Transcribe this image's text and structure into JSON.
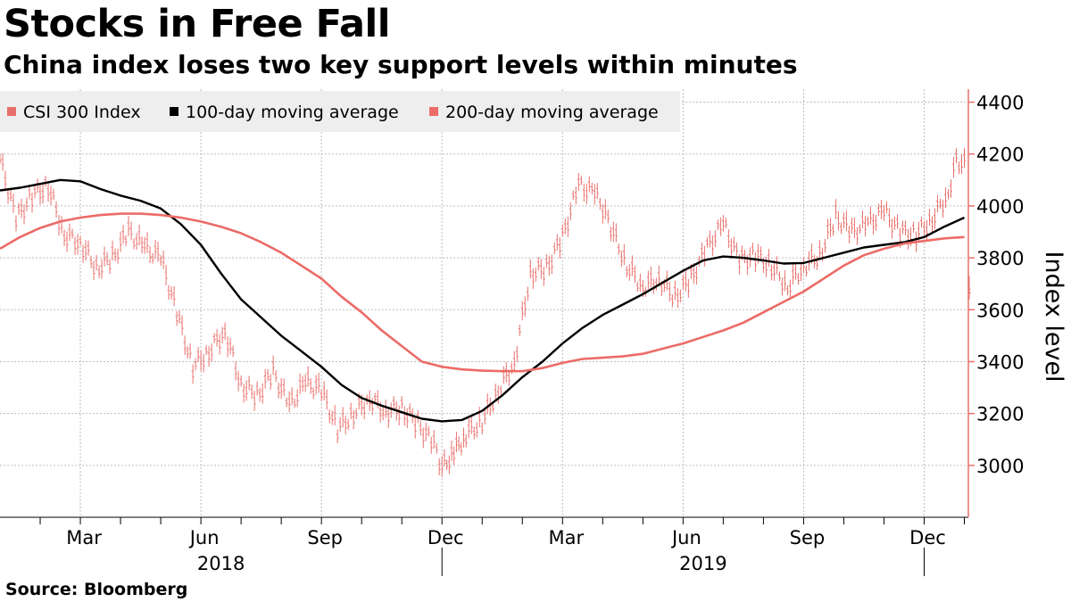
{
  "title": "Stocks in Free Fall",
  "subtitle": "China index loses two key support levels within minutes",
  "source": "Source: Bloomberg",
  "colors": {
    "csi300": "#e8706c",
    "ma100": "#000000",
    "ma200": "#ec6b67",
    "grid": "#bdbdbd",
    "axis": "#e8706c",
    "legend_bg": "#eeeeee"
  },
  "chart_data": {
    "type": "line",
    "title": "Stocks in Free Fall",
    "subtitle": "China index loses two key support levels within minutes",
    "xlabel": "",
    "ylabel": "Index level",
    "ylim": [
      2800,
      4450
    ],
    "y_ticks": [
      3000,
      3200,
      3400,
      3600,
      3800,
      4000,
      4200,
      4400
    ],
    "x_domain": [
      0,
      24.1
    ],
    "x_ticks": [
      {
        "label": "Mar",
        "x": 2
      },
      {
        "label": "Jun",
        "x": 5
      },
      {
        "label": "Sep",
        "x": 8
      },
      {
        "label": "Dec",
        "x": 11
      },
      {
        "label": "Mar",
        "x": 14
      },
      {
        "label": "Jun",
        "x": 17
      },
      {
        "label": "Sep",
        "x": 20
      },
      {
        "label": "Dec",
        "x": 23
      }
    ],
    "minor_ticks": [
      1,
      2,
      3,
      4,
      5,
      6,
      7,
      8,
      9,
      10,
      11,
      12,
      13,
      14,
      15,
      16,
      17,
      18,
      19,
      20,
      21,
      22,
      23,
      24
    ],
    "year_labels": [
      {
        "label": "2018",
        "x": 5.5
      },
      {
        "label": "2019",
        "x": 17.5
      }
    ],
    "year_dividers": [
      11,
      23
    ],
    "legend": [
      "CSI 300 Index",
      "100-day moving average",
      "200-day moving average"
    ],
    "grid": true,
    "series": [
      {
        "name": "CSI 300 Index",
        "style": "bars",
        "x": [
          0.0,
          0.4,
          0.8,
          1.2,
          1.6,
          2.0,
          2.4,
          2.8,
          3.2,
          3.6,
          4.0,
          4.4,
          4.8,
          5.2,
          5.6,
          6.0,
          6.4,
          6.8,
          7.2,
          7.6,
          8.0,
          8.4,
          8.8,
          9.2,
          9.6,
          10.0,
          10.4,
          10.8,
          11.0,
          11.3,
          11.6,
          12.0,
          12.4,
          12.8,
          13.2,
          13.6,
          14.0,
          14.4,
          14.8,
          15.0,
          15.2,
          15.6,
          16.0,
          16.4,
          16.8,
          17.2,
          17.6,
          18.0,
          18.4,
          18.8,
          19.2,
          19.6,
          20.0,
          20.4,
          20.8,
          21.2,
          21.6,
          22.0,
          22.4,
          22.8,
          23.2,
          23.6,
          23.8,
          24.0
        ],
        "values": [
          4180,
          3950,
          4040,
          4080,
          3890,
          3860,
          3760,
          3800,
          3900,
          3840,
          3800,
          3590,
          3380,
          3440,
          3520,
          3310,
          3270,
          3360,
          3230,
          3320,
          3290,
          3140,
          3200,
          3260,
          3210,
          3220,
          3160,
          3080,
          2990,
          3050,
          3120,
          3170,
          3290,
          3400,
          3740,
          3760,
          3880,
          4080,
          4050,
          3990,
          3920,
          3770,
          3690,
          3720,
          3650,
          3720,
          3840,
          3930,
          3790,
          3810,
          3770,
          3690,
          3770,
          3810,
          3960,
          3900,
          3930,
          3980,
          3900,
          3890,
          3950,
          4050,
          4180,
          4160
        ]
      },
      {
        "name": "CSI 300 Index (latest)",
        "style": "bars",
        "x": [
          24.12
        ],
        "values": [
          3685
        ]
      },
      {
        "name": "100-day moving average",
        "style": "line",
        "x": [
          0.0,
          0.5,
          1.0,
          1.5,
          2.0,
          2.5,
          3.0,
          3.5,
          4.0,
          4.5,
          5.0,
          5.5,
          6.0,
          6.5,
          7.0,
          7.5,
          8.0,
          8.5,
          9.0,
          9.5,
          10.0,
          10.5,
          11.0,
          11.5,
          12.0,
          12.5,
          13.0,
          13.5,
          14.0,
          14.5,
          15.0,
          15.5,
          16.0,
          16.5,
          17.0,
          17.5,
          18.0,
          18.5,
          19.0,
          19.5,
          20.0,
          20.5,
          21.0,
          21.5,
          22.0,
          22.5,
          23.0,
          23.5,
          24.0
        ],
        "values": [
          4060,
          4070,
          4085,
          4100,
          4095,
          4065,
          4040,
          4020,
          3990,
          3930,
          3850,
          3740,
          3640,
          3570,
          3500,
          3440,
          3380,
          3310,
          3260,
          3230,
          3205,
          3180,
          3170,
          3175,
          3210,
          3270,
          3340,
          3400,
          3470,
          3530,
          3580,
          3620,
          3660,
          3705,
          3750,
          3790,
          3805,
          3800,
          3790,
          3778,
          3780,
          3800,
          3820,
          3840,
          3850,
          3860,
          3880,
          3920,
          3955
        ]
      },
      {
        "name": "200-day moving average",
        "style": "line",
        "x": [
          0.0,
          0.5,
          1.0,
          1.5,
          2.0,
          2.5,
          3.0,
          3.5,
          4.0,
          4.5,
          5.0,
          5.5,
          6.0,
          6.5,
          7.0,
          7.5,
          8.0,
          8.5,
          9.0,
          9.5,
          10.0,
          10.5,
          11.0,
          11.5,
          12.0,
          12.5,
          13.0,
          13.5,
          14.0,
          14.5,
          15.0,
          15.5,
          16.0,
          16.5,
          17.0,
          17.5,
          18.0,
          18.5,
          19.0,
          19.5,
          20.0,
          20.5,
          21.0,
          21.5,
          22.0,
          22.5,
          23.0,
          23.5,
          24.0
        ],
        "values": [
          3835,
          3880,
          3915,
          3940,
          3955,
          3965,
          3970,
          3970,
          3965,
          3955,
          3940,
          3920,
          3895,
          3860,
          3820,
          3770,
          3720,
          3650,
          3590,
          3520,
          3460,
          3400,
          3380,
          3370,
          3365,
          3363,
          3363,
          3375,
          3395,
          3410,
          3415,
          3420,
          3430,
          3450,
          3470,
          3495,
          3520,
          3550,
          3590,
          3630,
          3670,
          3720,
          3770,
          3810,
          3835,
          3855,
          3865,
          3875,
          3880
        ]
      }
    ]
  }
}
